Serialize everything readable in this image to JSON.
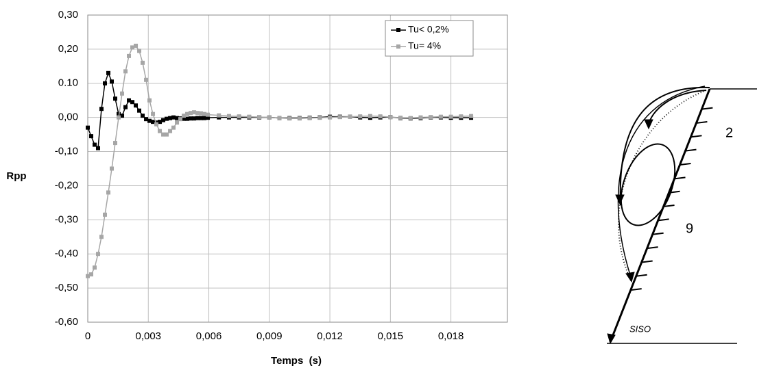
{
  "chart_data": {
    "type": "line",
    "ylabel": "Rpp",
    "xlabel": "Temps  (s)",
    "x": [
      0,
      0.00017,
      0.00034,
      0.00051,
      0.00068,
      0.00085,
      0.00102,
      0.00119,
      0.00136,
      0.00153,
      0.0017,
      0.00187,
      0.00204,
      0.00221,
      0.00238,
      0.00255,
      0.00272,
      0.00289,
      0.00306,
      0.00323,
      0.0034,
      0.00357,
      0.00374,
      0.00391,
      0.00408,
      0.00425,
      0.00442,
      0.00459,
      0.00476,
      0.00493,
      0.0051,
      0.00527,
      0.00544,
      0.00561,
      0.00578,
      0.00595,
      0.0065,
      0.007,
      0.0075,
      0.008,
      0.0085,
      0.009,
      0.0095,
      0.01,
      0.0105,
      0.011,
      0.0115,
      0.012,
      0.0125,
      0.013,
      0.0135,
      0.014,
      0.0145,
      0.015,
      0.0155,
      0.016,
      0.0165,
      0.017,
      0.0175,
      0.018,
      0.0185,
      0.019
    ],
    "series": [
      {
        "name": "Tu< 0,2%",
        "color": "#000000",
        "values": [
          -0.03,
          -0.055,
          -0.08,
          -0.09,
          0.025,
          0.1,
          0.13,
          0.105,
          0.055,
          0.01,
          0.005,
          0.03,
          0.05,
          0.045,
          0.035,
          0.02,
          0.005,
          -0.005,
          -0.01,
          -0.013,
          -0.015,
          -0.013,
          -0.008,
          -0.004,
          -0.002,
          0,
          -0.002,
          -0.003,
          -0.004,
          -0.004,
          -0.003,
          -0.003,
          -0.002,
          -0.002,
          -0.002,
          -0.001,
          0,
          0,
          0,
          0,
          0,
          0,
          -0.002,
          -0.002,
          -0.002,
          -0.001,
          0,
          0.002,
          0.002,
          0.002,
          0,
          -0.001,
          0,
          0.001,
          -0.002,
          -0.003,
          -0.002,
          0,
          0,
          -0.001,
          -0.001,
          -0.001
        ]
      },
      {
        "name": "Tu= 4%",
        "color": "#a6a6a6",
        "values": [
          -0.465,
          -0.46,
          -0.44,
          -0.4,
          -0.35,
          -0.285,
          -0.22,
          -0.15,
          -0.075,
          0,
          0.07,
          0.135,
          0.18,
          0.205,
          0.21,
          0.195,
          0.16,
          0.11,
          0.05,
          0.01,
          -0.02,
          -0.04,
          -0.05,
          -0.05,
          -0.04,
          -0.03,
          -0.015,
          -0.005,
          0.005,
          0.01,
          0.013,
          0.015,
          0.013,
          0.012,
          0.01,
          0.008,
          0.006,
          0.004,
          0.003,
          0.002,
          0.001,
          0,
          -0.002,
          -0.003,
          -0.003,
          -0.002,
          -0.001,
          0,
          0.001,
          0.002,
          0.003,
          0.004,
          0.003,
          0.001,
          -0.001,
          -0.002,
          0,
          0.001,
          0.002,
          0.002,
          0.003,
          0.004
        ]
      }
    ],
    "xlim": [
      0,
      0.0208
    ],
    "ylim": [
      -0.6,
      0.3
    ],
    "xticks": [
      0,
      {
        "value": 0.003,
        "label": "0,003"
      },
      {
        "value": 0.006,
        "label": "0,006"
      },
      {
        "value": 0.009,
        "label": "0,009"
      },
      {
        "value": 0.012,
        "label": "0,012"
      },
      {
        "value": 0.015,
        "label": "0,015"
      },
      {
        "value": 0.018,
        "label": "0,018"
      }
    ],
    "yticks": [
      {
        "value": -0.6,
        "label": "-0,60"
      },
      {
        "value": -0.5,
        "label": "-0,50"
      },
      {
        "value": -0.4,
        "label": "-0,40"
      },
      {
        "value": -0.3,
        "label": "-0,30"
      },
      {
        "value": -0.2,
        "label": "-0,20"
      },
      {
        "value": -0.1,
        "label": "-0,10"
      },
      {
        "value": 0,
        "label": "0,00"
      },
      {
        "value": 0.1,
        "label": "0.10"
      },
      {
        "value": 0.2,
        "label": "0,20"
      },
      {
        "value": 0.3,
        "label": "0,30"
      }
    ],
    "grid": true,
    "legend": "top-right"
  },
  "diagram": {
    "labels": [
      "2",
      "9",
      "SISO"
    ]
  }
}
